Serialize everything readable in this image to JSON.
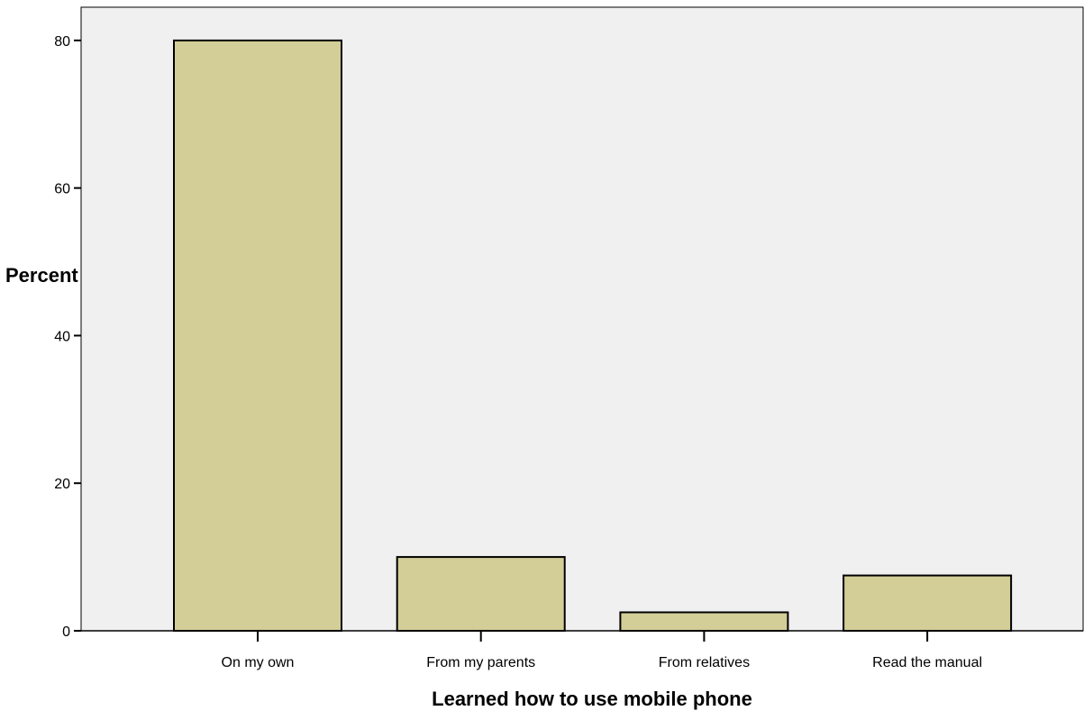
{
  "chart_data": {
    "type": "bar",
    "title": "",
    "xlabel": "Learned how to use mobile phone",
    "ylabel": "Percent",
    "categories": [
      "On my own",
      "From my parents",
      "From relatives",
      "Read the manual"
    ],
    "values": [
      80.0,
      10.0,
      2.5,
      7.5
    ],
    "ylim": [
      0,
      84.5
    ],
    "yticks": [
      0,
      20,
      40,
      60,
      80
    ],
    "grid": false,
    "legend": "none",
    "colors": {
      "plot_background": "#f0f0f0",
      "bar_fill": "#d3ce97",
      "bar_stroke": "#000000"
    }
  }
}
